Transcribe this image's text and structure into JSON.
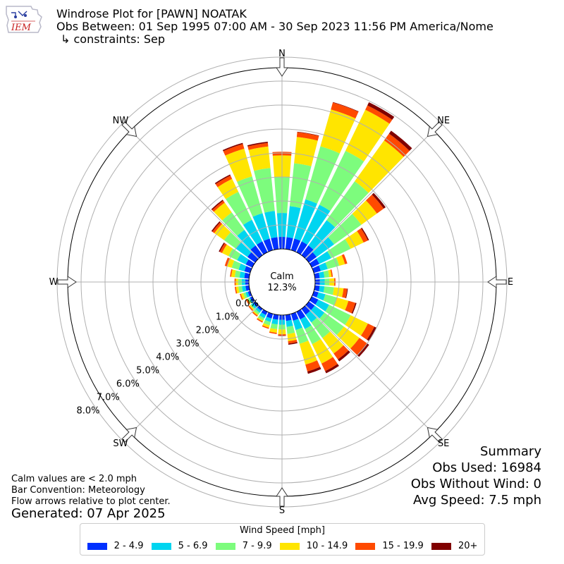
{
  "header": {
    "logo_text": "IEM",
    "title": "Windrose Plot for [PAWN] NOATAK",
    "subtitle": "Obs Between: 01 Sep 1995 07:00 AM - 30 Sep 2023 11:56 PM America/Nome",
    "constraints": "↳ constraints: Sep"
  },
  "summary": {
    "heading": "Summary",
    "obs_used": "Obs Used: 16984",
    "obs_without_wind": "Obs Without Wind: 0",
    "avg_speed": "Avg Speed: 7.5 mph"
  },
  "notes": {
    "calm": "Calm values are < 2.0 mph",
    "convention": "Bar Convention: Meteorology",
    "flow": "Flow arrows relative to plot center."
  },
  "generated": "Generated: 07 Apr 2025",
  "legend": {
    "title": "Wind Speed [mph]",
    "items": [
      {
        "label": "2 - 4.9",
        "color": "#0030ff"
      },
      {
        "label": "5 - 6.9",
        "color": "#00d5f0"
      },
      {
        "label": "7 - 9.9",
        "color": "#7dfc7d"
      },
      {
        "label": "10 - 14.9",
        "color": "#ffe500"
      },
      {
        "label": "15 - 19.9",
        "color": "#ff4a00"
      },
      {
        "label": "20+",
        "color": "#800000"
      }
    ]
  },
  "chart_data": {
    "type": "windrose",
    "calm_label": "Calm",
    "calm_value": "12.3%",
    "radial_ticks": [
      "0.0%",
      "1.0%",
      "2.0%",
      "3.0%",
      "4.0%",
      "5.0%",
      "6.0%",
      "7.0%",
      "8.0%"
    ],
    "directions_labels": [
      "N",
      "NE",
      "E",
      "SE",
      "S",
      "SW",
      "W",
      "NW"
    ],
    "bins": [
      "2 - 4.9",
      "5 - 6.9",
      "7 - 9.9",
      "10 - 14.9",
      "15 - 19.9",
      "20+"
    ],
    "sectors": [
      {
        "dir": 0,
        "cum": [
          0.5,
          1.5,
          3.0,
          3.9,
          4.05,
          4.05
        ]
      },
      {
        "dir": 10,
        "cum": [
          0.5,
          1.8,
          3.6,
          4.7,
          4.9,
          4.92
        ]
      },
      {
        "dir": 20,
        "cum": [
          0.5,
          2.2,
          4.5,
          6.1,
          6.4,
          6.42
        ]
      },
      {
        "dir": 30,
        "cum": [
          0.5,
          2.2,
          4.7,
          6.6,
          6.8,
          6.95
        ]
      },
      {
        "dir": 40,
        "cum": [
          0.5,
          1.8,
          3.8,
          5.9,
          6.25,
          6.4
        ]
      },
      {
        "dir": 50,
        "cum": [
          0.4,
          1.3,
          2.7,
          3.5,
          3.85,
          3.95
        ]
      },
      {
        "dir": 60,
        "cum": [
          0.35,
          0.9,
          1.8,
          2.4,
          2.6,
          2.65
        ]
      },
      {
        "dir": 70,
        "cum": [
          0.3,
          0.6,
          1.1,
          1.35,
          1.45,
          1.45
        ]
      },
      {
        "dir": 80,
        "cum": [
          0.2,
          0.4,
          0.6,
          0.7,
          0.75,
          0.75
        ]
      },
      {
        "dir": 90,
        "cum": [
          0.2,
          0.4,
          0.6,
          0.8,
          0.85,
          0.85
        ]
      },
      {
        "dir": 100,
        "cum": [
          0.2,
          0.4,
          0.8,
          1.2,
          1.35,
          1.38
        ]
      },
      {
        "dir": 110,
        "cum": [
          0.2,
          0.5,
          1.0,
          1.5,
          1.8,
          1.85
        ]
      },
      {
        "dir": 120,
        "cum": [
          0.3,
          0.8,
          1.8,
          2.6,
          2.9,
          3.0
        ]
      },
      {
        "dir": 130,
        "cum": [
          0.3,
          0.8,
          1.8,
          2.6,
          3.0,
          3.1
        ]
      },
      {
        "dir": 140,
        "cum": [
          0.3,
          0.7,
          1.5,
          2.3,
          2.6,
          2.7
        ]
      },
      {
        "dir": 150,
        "cum": [
          0.35,
          0.8,
          1.5,
          2.4,
          2.75,
          2.85
        ]
      },
      {
        "dir": 160,
        "cum": [
          0.3,
          0.7,
          1.3,
          2.2,
          2.5,
          2.6
        ]
      },
      {
        "dir": 170,
        "cum": [
          0.25,
          0.5,
          0.8,
          1.1,
          1.2,
          1.25
        ]
      },
      {
        "dir": 180,
        "cum": [
          0.2,
          0.4,
          0.6,
          0.8,
          0.85,
          0.87
        ]
      },
      {
        "dir": 190,
        "cum": [
          0.2,
          0.4,
          0.6,
          0.75,
          0.8,
          0.8
        ]
      },
      {
        "dir": 200,
        "cum": [
          0.2,
          0.35,
          0.5,
          0.6,
          0.65,
          0.65
        ]
      },
      {
        "dir": 210,
        "cum": [
          0.15,
          0.3,
          0.4,
          0.45,
          0.5,
          0.5
        ]
      },
      {
        "dir": 220,
        "cum": [
          0.1,
          0.2,
          0.3,
          0.35,
          0.4,
          0.4
        ]
      },
      {
        "dir": 230,
        "cum": [
          0.1,
          0.2,
          0.25,
          0.3,
          0.35,
          0.35
        ]
      },
      {
        "dir": 240,
        "cum": [
          0.1,
          0.15,
          0.2,
          0.25,
          0.3,
          0.3
        ]
      },
      {
        "dir": 250,
        "cum": [
          0.1,
          0.2,
          0.3,
          0.4,
          0.45,
          0.45
        ]
      },
      {
        "dir": 260,
        "cum": [
          0.15,
          0.3,
          0.45,
          0.55,
          0.6,
          0.6
        ]
      },
      {
        "dir": 270,
        "cum": [
          0.15,
          0.3,
          0.45,
          0.55,
          0.6,
          0.6
        ]
      },
      {
        "dir": 280,
        "cum": [
          0.2,
          0.4,
          0.6,
          0.75,
          0.8,
          0.8
        ]
      },
      {
        "dir": 290,
        "cum": [
          0.25,
          0.5,
          0.8,
          1.0,
          1.1,
          1.1
        ]
      },
      {
        "dir": 300,
        "cum": [
          0.3,
          0.7,
          1.1,
          1.4,
          1.5,
          1.55
        ]
      },
      {
        "dir": 310,
        "cum": [
          0.4,
          1.0,
          1.6,
          2.1,
          2.2,
          2.25
        ]
      },
      {
        "dir": 320,
        "cum": [
          0.5,
          1.3,
          2.2,
          2.7,
          2.8,
          2.85
        ]
      },
      {
        "dir": 330,
        "cum": [
          0.5,
          1.5,
          2.8,
          3.4,
          3.55,
          3.6
        ]
      },
      {
        "dir": 340,
        "cum": [
          0.5,
          1.6,
          3.2,
          4.4,
          4.6,
          4.65
        ]
      },
      {
        "dir": 350,
        "cum": [
          0.5,
          1.6,
          3.4,
          4.3,
          4.45,
          4.5
        ]
      }
    ]
  }
}
